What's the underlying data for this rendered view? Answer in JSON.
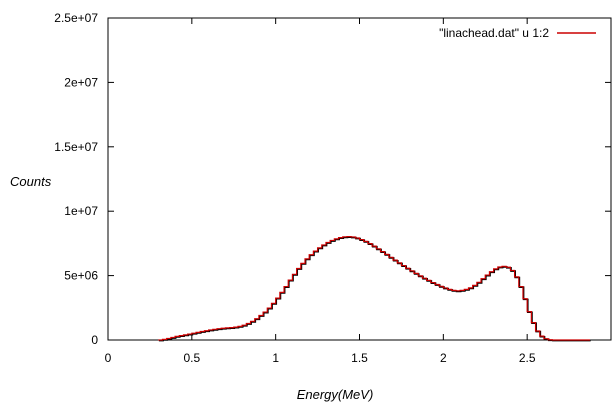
{
  "chart_data": {
    "type": "line",
    "title": "",
    "xlabel": "Energy(MeV)",
    "ylabel": "Counts",
    "xlim": [
      0,
      3
    ],
    "ylim": [
      0,
      25000000
    ],
    "grid": false,
    "legend_position": "top-right",
    "x_ticks": [
      {
        "value": 0,
        "label": "0"
      },
      {
        "value": 0.5,
        "label": "0.5"
      },
      {
        "value": 1,
        "label": "1"
      },
      {
        "value": 1.5,
        "label": "1.5"
      },
      {
        "value": 2,
        "label": "2"
      },
      {
        "value": 2.5,
        "label": "2.5"
      }
    ],
    "y_ticks": [
      {
        "value": 0,
        "label": "0"
      },
      {
        "value": 5000000,
        "label": "5e+06"
      },
      {
        "value": 10000000,
        "label": "1e+07"
      },
      {
        "value": 15000000,
        "label": "1.5e+07"
      },
      {
        "value": 20000000,
        "label": "2e+07"
      },
      {
        "value": 25000000,
        "label": "2.5e+07"
      }
    ],
    "series": [
      {
        "name": "\"linachead.dat\" u 1:2",
        "color": "#cc0000",
        "style": "steps",
        "x": [
          0.3,
          0.325,
          0.35,
          0.375,
          0.4,
          0.425,
          0.45,
          0.475,
          0.5,
          0.525,
          0.55,
          0.575,
          0.6,
          0.625,
          0.65,
          0.675,
          0.7,
          0.725,
          0.75,
          0.775,
          0.8,
          0.825,
          0.85,
          0.875,
          0.9,
          0.925,
          0.95,
          0.975,
          1.0,
          1.025,
          1.05,
          1.075,
          1.1,
          1.125,
          1.15,
          1.175,
          1.2,
          1.225,
          1.25,
          1.275,
          1.3,
          1.325,
          1.35,
          1.375,
          1.4,
          1.425,
          1.45,
          1.475,
          1.5,
          1.525,
          1.55,
          1.575,
          1.6,
          1.625,
          1.65,
          1.675,
          1.7,
          1.725,
          1.75,
          1.775,
          1.8,
          1.825,
          1.85,
          1.875,
          1.9,
          1.925,
          1.95,
          1.975,
          2.0,
          2.025,
          2.05,
          2.075,
          2.1,
          2.125,
          2.15,
          2.175,
          2.2,
          2.225,
          2.25,
          2.275,
          2.3,
          2.325,
          2.35,
          2.375,
          2.4,
          2.425,
          2.45,
          2.475,
          2.5,
          2.525,
          2.55,
          2.575,
          2.6,
          2.625,
          2.65,
          2.675,
          2.7,
          2.725,
          2.75,
          2.775,
          2.8,
          2.825,
          2.85
        ],
        "y": [
          0,
          50000,
          120000,
          200000,
          280000,
          340000,
          400000,
          460000,
          530000,
          590000,
          660000,
          720000,
          780000,
          830000,
          880000,
          910000,
          940000,
          960000,
          1000000,
          1060000,
          1150000,
          1280000,
          1450000,
          1650000,
          1900000,
          2170000,
          2480000,
          2850000,
          3250000,
          3700000,
          4150000,
          4650000,
          5100000,
          5550000,
          5950000,
          6300000,
          6620000,
          6900000,
          7150000,
          7380000,
          7570000,
          7730000,
          7850000,
          7950000,
          8010000,
          8030000,
          8000000,
          7920000,
          7800000,
          7660000,
          7480000,
          7290000,
          7080000,
          6860000,
          6650000,
          6420000,
          6200000,
          5990000,
          5780000,
          5570000,
          5370000,
          5170000,
          4980000,
          4800000,
          4630000,
          4460000,
          4310000,
          4170000,
          4040000,
          3930000,
          3850000,
          3820000,
          3850000,
          3930000,
          4050000,
          4240000,
          4480000,
          4760000,
          5040000,
          5300000,
          5520000,
          5670000,
          5720000,
          5650000,
          5400000,
          4900000,
          4150000,
          3200000,
          2200000,
          1350000,
          700000,
          300000,
          100000,
          20000,
          0,
          0,
          0,
          0,
          0,
          0,
          0,
          0,
          0
        ]
      }
    ]
  }
}
